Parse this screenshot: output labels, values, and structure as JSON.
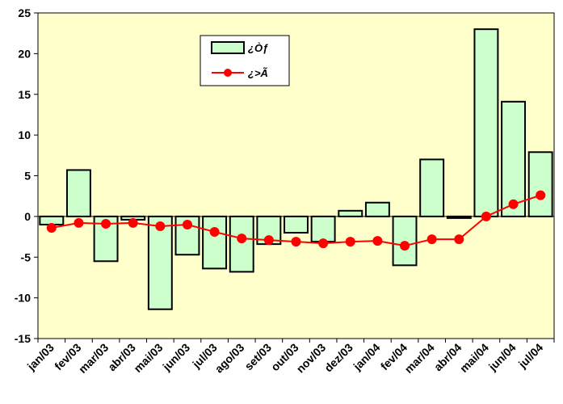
{
  "chart_data": {
    "type": "bar",
    "categories": [
      "jan/03",
      "fev/03",
      "mar/03",
      "abr/03",
      "mai/03",
      "jun/03",
      "jul/03",
      "ago/03",
      "set/03",
      "out/03",
      "nov/03",
      "dez/03",
      "jan/04",
      "fev/04",
      "mar/04",
      "abr/04",
      "mai/04",
      "jun/04",
      "jul/04"
    ],
    "series": [
      {
        "name": "¿Òƒ",
        "kind": "bar",
        "color": "#ccffcc",
        "values": [
          -1.0,
          5.7,
          -5.5,
          -0.4,
          -11.4,
          -4.7,
          -6.4,
          -6.8,
          -3.4,
          -2.0,
          -3.1,
          0.7,
          1.7,
          -6.0,
          7.0,
          -0.2,
          23.0,
          14.1,
          7.9
        ]
      },
      {
        "name": "¿>Ã",
        "kind": "line",
        "color": "#ff0000",
        "values": [
          -1.4,
          -0.8,
          -0.9,
          -0.8,
          -1.2,
          -1.0,
          -1.9,
          -2.7,
          -2.9,
          -3.1,
          -3.3,
          -3.1,
          -3.0,
          -3.6,
          -2.8,
          -2.8,
          0.0,
          1.5,
          2.6
        ]
      }
    ],
    "ylim": [
      -15,
      25
    ],
    "yticks": [
      "25",
      "20",
      "15",
      "10",
      "5",
      "0",
      "-5",
      "-10",
      "-15"
    ],
    "ytick_values": [
      25,
      20,
      15,
      10,
      5,
      0,
      -5,
      -10,
      -15
    ],
    "legend_position": "top-center",
    "grid": false,
    "plot_background": "#ffffcc"
  }
}
